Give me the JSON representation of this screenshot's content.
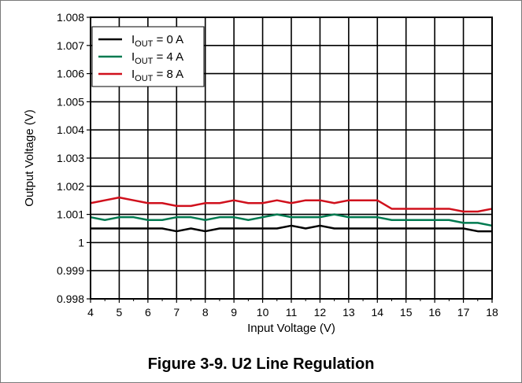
{
  "caption": "Figure 3-9. U2 Line Regulation",
  "chart_data": {
    "type": "line",
    "title": "",
    "xlabel": "Input Voltage (V)",
    "ylabel": "Output Voltage (V)",
    "xlim": [
      4,
      18
    ],
    "ylim": [
      0.998,
      1.008
    ],
    "x_ticks": [
      4,
      5,
      6,
      7,
      8,
      9,
      10,
      11,
      12,
      13,
      14,
      15,
      16,
      17,
      18
    ],
    "x_minor_step": 0.5,
    "y_ticks": [
      0.998,
      0.999,
      1.0,
      1.001,
      1.002,
      1.003,
      1.004,
      1.005,
      1.006,
      1.007,
      1.008
    ],
    "y_tick_labels": [
      "0.998",
      "0.999",
      "1",
      "1.001",
      "1.002",
      "1.003",
      "1.004",
      "1.005",
      "1.006",
      "1.007",
      "1.008"
    ],
    "grid": true,
    "legend_position": "top-left",
    "x": [
      4,
      4.5,
      5,
      5.5,
      6,
      6.5,
      7,
      7.5,
      8,
      8.5,
      9,
      9.5,
      10,
      10.5,
      11,
      11.5,
      12,
      12.5,
      13,
      13.5,
      14,
      14.5,
      15,
      15.5,
      16,
      16.5,
      17,
      17.5,
      18
    ],
    "series": [
      {
        "legend_prefix": "I",
        "legend_sub": "OUT",
        "legend_suffix": " = 0 A",
        "color": "#000000",
        "values": [
          1.0005,
          1.0005,
          1.0005,
          1.0005,
          1.0005,
          1.0005,
          1.0004,
          1.0005,
          1.0004,
          1.0005,
          1.0005,
          1.0005,
          1.0005,
          1.0005,
          1.0006,
          1.0005,
          1.0006,
          1.0005,
          1.0005,
          1.0005,
          1.0005,
          1.0005,
          1.0005,
          1.0005,
          1.0005,
          1.0005,
          1.0005,
          1.0004,
          1.0004
        ]
      },
      {
        "legend_prefix": "I",
        "legend_sub": "OUT",
        "legend_suffix": " = 4 A",
        "color": "#007a50",
        "values": [
          1.0009,
          1.0008,
          1.0009,
          1.0009,
          1.0008,
          1.0008,
          1.0009,
          1.0009,
          1.0008,
          1.0009,
          1.0009,
          1.0008,
          1.0009,
          1.001,
          1.0009,
          1.0009,
          1.0009,
          1.001,
          1.0009,
          1.0009,
          1.0009,
          1.0008,
          1.0008,
          1.0008,
          1.0008,
          1.0008,
          1.0007,
          1.0007,
          1.0006
        ]
      },
      {
        "legend_prefix": "I",
        "legend_sub": "OUT",
        "legend_suffix": " = 8 A",
        "color": "#d0101c",
        "values": [
          1.0014,
          1.0015,
          1.0016,
          1.0015,
          1.0014,
          1.0014,
          1.0013,
          1.0013,
          1.0014,
          1.0014,
          1.0015,
          1.0014,
          1.0014,
          1.0015,
          1.0014,
          1.0015,
          1.0015,
          1.0014,
          1.0015,
          1.0015,
          1.0015,
          1.0012,
          1.0012,
          1.0012,
          1.0012,
          1.0012,
          1.0011,
          1.0011,
          1.0012
        ]
      }
    ]
  }
}
